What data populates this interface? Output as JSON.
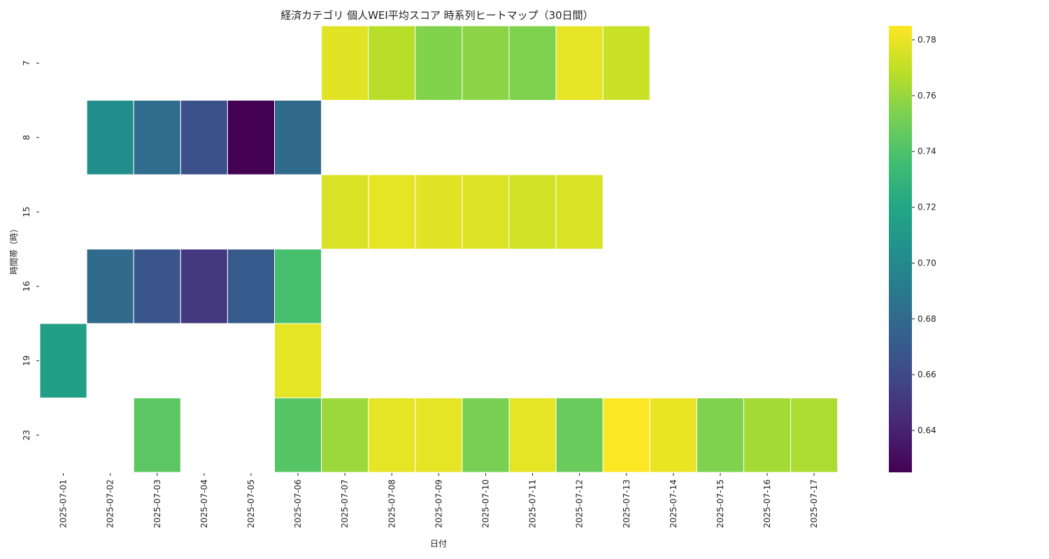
{
  "chart_data": {
    "type": "heatmap",
    "title": "経済カテゴリ 個人WEI平均スコア 時系列ヒートマップ（30日間）",
    "xlabel": "日付",
    "ylabel": "時間帯（時）",
    "x_categories": [
      "2025-07-01",
      "2025-07-02",
      "2025-07-03",
      "2025-07-04",
      "2025-07-05",
      "2025-07-06",
      "2025-07-07",
      "2025-07-08",
      "2025-07-09",
      "2025-07-10",
      "2025-07-11",
      "2025-07-12",
      "2025-07-13",
      "2025-07-14",
      "2025-07-15",
      "2025-07-16",
      "2025-07-17"
    ],
    "y_categories": [
      "7",
      "8",
      "15",
      "16",
      "19",
      "23"
    ],
    "values": [
      [
        null,
        null,
        null,
        null,
        null,
        null,
        0.778,
        0.768,
        0.755,
        0.757,
        0.754,
        0.779,
        0.772,
        null,
        null,
        null,
        null
      ],
      [
        null,
        0.703,
        0.681,
        0.664,
        0.625,
        0.68,
        null,
        null,
        null,
        null,
        null,
        null,
        null,
        null,
        null,
        null,
        null
      ],
      [
        null,
        null,
        null,
        null,
        null,
        null,
        0.776,
        0.779,
        0.778,
        0.777,
        0.774,
        0.776,
        null,
        null,
        null,
        null,
        null
      ],
      [
        null,
        0.68,
        0.667,
        0.651,
        0.67,
        0.738,
        null,
        null,
        null,
        null,
        null,
        null,
        null,
        null,
        null,
        null,
        null
      ],
      [
        0.715,
        null,
        null,
        null,
        null,
        0.779,
        null,
        null,
        null,
        null,
        null,
        null,
        null,
        null,
        null,
        null,
        null
      ],
      [
        null,
        null,
        0.744,
        null,
        null,
        0.742,
        0.761,
        0.779,
        0.779,
        0.752,
        0.779,
        0.748,
        0.785,
        0.78,
        0.754,
        0.763,
        0.765
      ]
    ],
    "colormap": "viridis",
    "vmin": 0.625,
    "vmax": 0.785,
    "colorbar_ticks": [
      0.64,
      0.66,
      0.68,
      0.7,
      0.72,
      0.74,
      0.76,
      0.78
    ],
    "colorbar_tick_labels": [
      "0.64",
      "0.66",
      "0.68",
      "0.70",
      "0.72",
      "0.74",
      "0.76",
      "0.78"
    ]
  }
}
